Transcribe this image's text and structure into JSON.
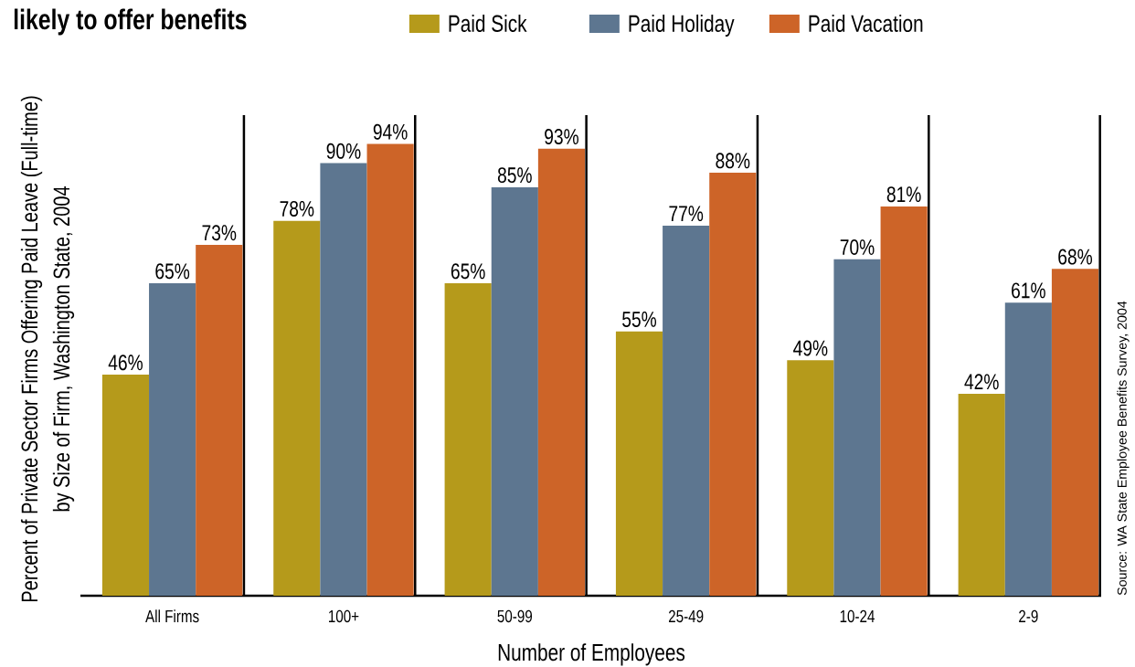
{
  "chart_data": {
    "type": "bar",
    "title": "likely to offer benefits",
    "xlabel": "Number of Employees",
    "ylabel": "Percent of Private Sector Firms Offering Paid Leave (Full-time) by Size of Firm, Washington State, 2004",
    "annotations": [
      "Source: WA State Employee Benefits Survey, 2004"
    ],
    "categories": [
      "All Firms",
      "100+",
      "50-99",
      "25-49",
      "10-24",
      "2-9"
    ],
    "series": [
      {
        "name": "Paid Sick",
        "color": "#b59a1b",
        "values": [
          46,
          78,
          65,
          55,
          49,
          42
        ],
        "value_labels": [
          "46%",
          "78%",
          "65%",
          "55%",
          "49%",
          "42%"
        ]
      },
      {
        "name": "Paid Holiday",
        "color": "#5d7690",
        "values": [
          65,
          90,
          85,
          77,
          70,
          61
        ],
        "value_labels": [
          "65%",
          "90%",
          "85%",
          "77%",
          "70%",
          "61%"
        ]
      },
      {
        "name": "Paid Vacation",
        "color": "#cd6428",
        "values": [
          73,
          94,
          93,
          88,
          81,
          68
        ],
        "value_labels": [
          "73%",
          "94%",
          "93%",
          "88%",
          "81%",
          "68%"
        ]
      }
    ],
    "ylim": [
      0,
      100
    ],
    "grid": "x",
    "legend": "top",
    "tick_labels": "x"
  }
}
